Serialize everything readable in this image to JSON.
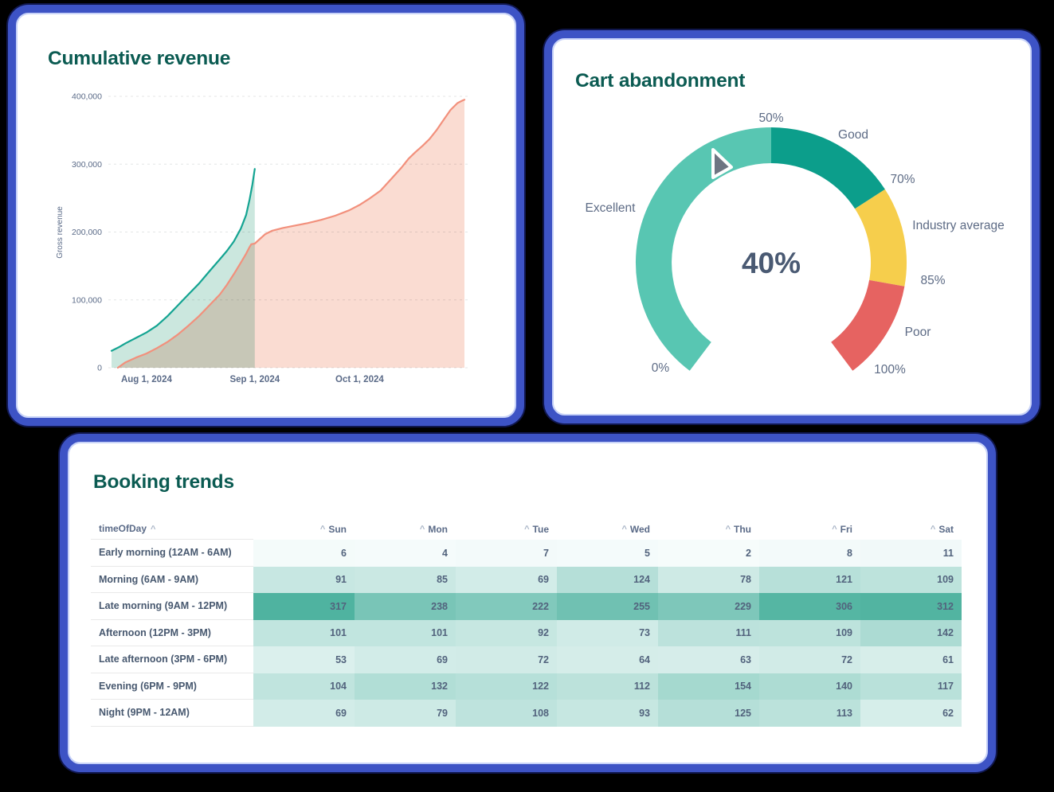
{
  "page": {
    "background": "#000000",
    "card_border_color": "#3d53c5",
    "title_color": "#0b5b52"
  },
  "cards": {
    "revenue": {
      "title": "Cumulative revenue"
    },
    "cart": {
      "title": "Cart abandonment"
    },
    "bookings": {
      "title": "Booking trends"
    }
  },
  "chart_data": [
    {
      "type": "area",
      "title": "Cumulative revenue",
      "ylabel": "Gross revenue",
      "ylim": [
        0,
        400000
      ],
      "grid": true,
      "legend": "none",
      "y_ticks": [
        {
          "value": 0,
          "label": "0"
        },
        {
          "value": 100000,
          "label": "100,000"
        },
        {
          "value": 200000,
          "label": "200,000"
        },
        {
          "value": 300000,
          "label": "300,000"
        },
        {
          "value": 400000,
          "label": "400,000"
        }
      ],
      "x_ticks": [
        {
          "day": 10,
          "label": "Aug 1, 2024"
        },
        {
          "day": 41,
          "label": "Sep 1, 2024"
        },
        {
          "day": 71,
          "label": "Oct 1, 2024"
        }
      ],
      "x_domain_days": [
        0,
        101
      ],
      "series": [
        {
          "name": "series_teal",
          "line_color": "#14a492",
          "fill_color": "#cbe7de",
          "points": [
            [
              0,
              25000
            ],
            [
              2,
              30000
            ],
            [
              4,
              36000
            ],
            [
              7,
              44000
            ],
            [
              10,
              52000
            ],
            [
              13,
              62000
            ],
            [
              16,
              76000
            ],
            [
              19,
              92000
            ],
            [
              22,
              108000
            ],
            [
              25,
              124000
            ],
            [
              28,
              142000
            ],
            [
              31,
              160000
            ],
            [
              33,
              172000
            ],
            [
              35,
              186000
            ],
            [
              37,
              205000
            ],
            [
              38.5,
              225000
            ],
            [
              39.5,
              248000
            ],
            [
              40.3,
              270000
            ],
            [
              41,
              293000
            ]
          ]
        },
        {
          "name": "series_salmon",
          "line_color": "#f2907c",
          "fill_color": "#fadcd2",
          "points": [
            [
              1.8,
              0
            ],
            [
              4,
              8000
            ],
            [
              7,
              15000
            ],
            [
              10,
              21000
            ],
            [
              13,
              29000
            ],
            [
              16,
              38000
            ],
            [
              19,
              49000
            ],
            [
              22,
              62000
            ],
            [
              25,
              76000
            ],
            [
              28,
              92000
            ],
            [
              31,
              108000
            ],
            [
              33,
              122000
            ],
            [
              35,
              138000
            ],
            [
              37,
              155000
            ],
            [
              38.5,
              168000
            ],
            [
              39.5,
              178000
            ],
            [
              40,
              182000
            ],
            [
              41,
              183000
            ],
            [
              42.5,
              190000
            ],
            [
              44,
              197000
            ],
            [
              46,
              202000
            ],
            [
              49,
              206000
            ],
            [
              52,
              209000
            ],
            [
              56,
              213000
            ],
            [
              60,
              218000
            ],
            [
              64,
              224000
            ],
            [
              68,
              232000
            ],
            [
              71,
              240000
            ],
            [
              74,
              250000
            ],
            [
              77,
              261000
            ],
            [
              80,
              278000
            ],
            [
              83,
              295000
            ],
            [
              85,
              308000
            ],
            [
              87,
              318000
            ],
            [
              89,
              327000
            ],
            [
              91,
              337000
            ],
            [
              93,
              350000
            ],
            [
              95,
              365000
            ],
            [
              97,
              380000
            ],
            [
              99,
              390000
            ],
            [
              100.5,
              394000
            ],
            [
              101,
              395000
            ]
          ]
        }
      ]
    },
    {
      "type": "gauge",
      "title": "Cart abandonment",
      "value": 40,
      "value_label": "40%",
      "min": 0,
      "max": 100,
      "segments": [
        {
          "label": "Excellent",
          "from": 0,
          "to": 50,
          "color": "#58c6b2"
        },
        {
          "label": "Good",
          "from": 50,
          "to": 70,
          "color": "#0c9e8b"
        },
        {
          "label": "Industry average",
          "from": 70,
          "to": 85,
          "color": "#f6ce4c"
        },
        {
          "label": "Poor",
          "from": 85,
          "to": 100,
          "color": "#e66361"
        }
      ],
      "tick_labels": [
        {
          "pct": 0,
          "label": "0%"
        },
        {
          "pct": 50,
          "label": "50%"
        },
        {
          "pct": 70,
          "label": "70%"
        },
        {
          "pct": 85,
          "label": "85%"
        },
        {
          "pct": 100,
          "label": "100%"
        }
      ],
      "needle_color": "#6e7582",
      "value_color": "#4a5a73"
    },
    {
      "type": "heatmap",
      "title": "Booking trends",
      "row_header": "timeOfDay",
      "sort_indicator": "^",
      "columns": [
        "Sun",
        "Mon",
        "Tue",
        "Wed",
        "Thu",
        "Fri",
        "Sat"
      ],
      "rows": [
        {
          "label": "Early morning (12AM - 6AM)",
          "values": [
            6,
            4,
            7,
            5,
            2,
            8,
            11
          ]
        },
        {
          "label": "Morning (6AM - 9AM)",
          "values": [
            91,
            85,
            69,
            124,
            78,
            121,
            109
          ]
        },
        {
          "label": "Late morning (9AM - 12PM)",
          "values": [
            317,
            238,
            222,
            255,
            229,
            306,
            312
          ]
        },
        {
          "label": "Afternoon (12PM - 3PM)",
          "values": [
            101,
            101,
            92,
            73,
            111,
            109,
            142
          ]
        },
        {
          "label": "Late afternoon (3PM - 6PM)",
          "values": [
            53,
            69,
            72,
            64,
            63,
            72,
            61
          ]
        },
        {
          "label": "Evening (6PM - 9PM)",
          "values": [
            104,
            132,
            122,
            112,
            154,
            140,
            117
          ]
        },
        {
          "label": "Night (9PM - 12AM)",
          "values": [
            69,
            79,
            108,
            93,
            125,
            113,
            62
          ]
        }
      ],
      "color_scale": {
        "min_color": "#f7fcfc",
        "max_color": "#4fb3a0",
        "min": 0,
        "max": 317
      }
    }
  ]
}
